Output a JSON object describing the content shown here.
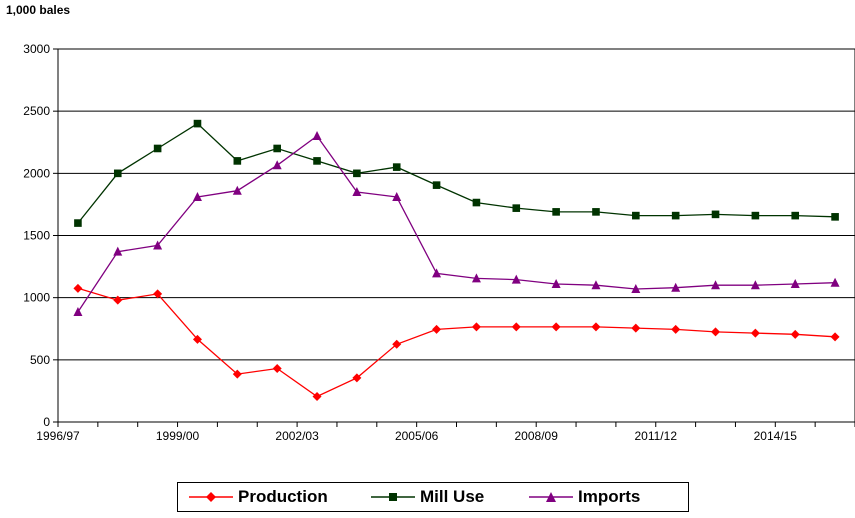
{
  "unit_label": "1,000 bales",
  "chart_data": {
    "type": "line",
    "title": "",
    "xlabel": "",
    "ylabel": "1,000 bales",
    "ylim": [
      0,
      3000
    ],
    "yticks": [
      0,
      500,
      1000,
      1500,
      2000,
      2500,
      3000
    ],
    "ytick_labels": [
      "0",
      "500",
      "1000",
      "1500",
      "2000",
      "2500",
      "3000"
    ],
    "x": [
      "1996/97",
      "1997/98",
      "1998/99",
      "1999/00",
      "2000/01",
      "2001/02",
      "2002/03",
      "2003/04",
      "2004/05",
      "2005/06",
      "2006/07",
      "2007/08",
      "2008/09",
      "2009/10",
      "2010/11",
      "2011/12",
      "2012/13",
      "2013/14",
      "2014/15",
      "2015/16"
    ],
    "x_tick_labels": [
      {
        "index": 0,
        "label": "1996/97"
      },
      {
        "index": 3,
        "label": "1999/00"
      },
      {
        "index": 6,
        "label": "2002/03"
      },
      {
        "index": 9,
        "label": "2005/06"
      },
      {
        "index": 12,
        "label": "2008/09"
      },
      {
        "index": 15,
        "label": "2011/12"
      },
      {
        "index": 18,
        "label": "2014/15"
      }
    ],
    "grid": "horizontal",
    "legend_position": "bottom",
    "series": [
      {
        "name": "Production",
        "color": "#ff0000",
        "marker": "diamond",
        "values": [
          1075,
          980,
          1030,
          665,
          385,
          430,
          205,
          355,
          625,
          745,
          765,
          765,
          765,
          765,
          755,
          745,
          725,
          715,
          705,
          685
        ]
      },
      {
        "name": "Mill Use",
        "color": "#003300",
        "marker": "square",
        "values": [
          1600,
          2000,
          2200,
          2400,
          2100,
          2200,
          2100,
          2000,
          2050,
          1905,
          1765,
          1720,
          1690,
          1690,
          1660,
          1660,
          1670,
          1660,
          1660,
          1650
        ]
      },
      {
        "name": "Imports",
        "color": "#800080",
        "marker": "triangle",
        "values": [
          885,
          1370,
          1420,
          1810,
          1860,
          2065,
          2300,
          1850,
          1810,
          1195,
          1155,
          1145,
          1110,
          1100,
          1070,
          1080,
          1100,
          1100,
          1110,
          1120
        ]
      }
    ]
  }
}
